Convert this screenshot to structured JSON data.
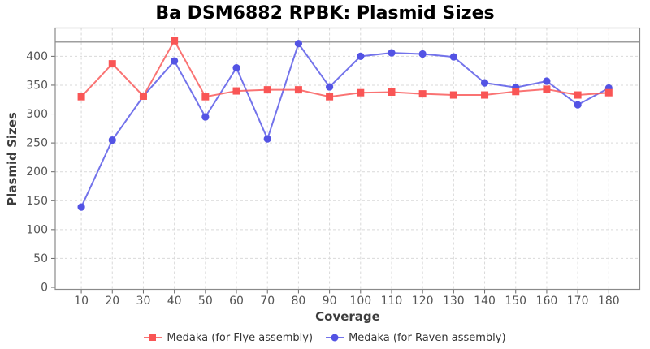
{
  "title": "Ba DSM6882 RPBK: Plasmid Sizes",
  "chart_data": {
    "type": "line",
    "title": "Ba DSM6882 RPBK: Plasmid Sizes",
    "xlabel": "Coverage",
    "ylabel": "Plasmid Sizes",
    "x": [
      10,
      20,
      30,
      40,
      50,
      60,
      70,
      80,
      90,
      100,
      110,
      120,
      130,
      140,
      150,
      160,
      170,
      180
    ],
    "series": [
      {
        "name": "Medaka (for Flye assembly)",
        "marker": "square",
        "color": "#f95555",
        "line_color": "rgba(249,90,90,0.85)",
        "values": [
          330,
          387,
          331,
          427,
          330,
          340,
          342,
          342,
          330,
          337,
          338,
          335,
          333,
          333,
          339,
          343,
          333,
          337
        ]
      },
      {
        "name": "Medaka (for Raven assembly)",
        "marker": "circle",
        "color": "#5353e4",
        "line_color": "rgba(90,90,232,0.85)",
        "values": [
          139,
          255,
          331,
          392,
          295,
          380,
          257,
          422,
          347,
          400,
          406,
          404,
          399,
          354,
          346,
          357,
          316,
          345
        ]
      }
    ],
    "reference_line": {
      "value": 425,
      "color": "#9e9e9e"
    },
    "x_ticks": [
      10,
      20,
      30,
      40,
      50,
      60,
      70,
      80,
      90,
      100,
      110,
      120,
      130,
      140,
      150,
      160,
      170,
      180
    ],
    "y_ticks": [
      0,
      50,
      100,
      150,
      200,
      250,
      300,
      350,
      400
    ],
    "xlim": [
      1.6,
      190
    ],
    "ylim": [
      -3.5,
      449
    ],
    "grid": true,
    "grid_style": "dashed",
    "legend_position": "bottom",
    "frame_color": "#8a8a8a",
    "grid_color": "#d9d9d9",
    "tick_color": "#666666",
    "tick_label_color": "#555555"
  }
}
